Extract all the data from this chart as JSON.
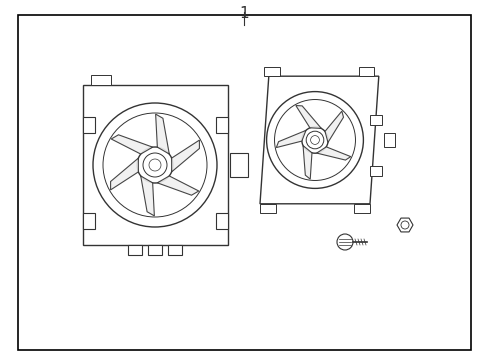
{
  "bg_color": "#ffffff",
  "border_color": "#000000",
  "line_color": "#333333",
  "title_label": "1",
  "fig_width": 4.89,
  "fig_height": 3.6,
  "dpi": 100
}
